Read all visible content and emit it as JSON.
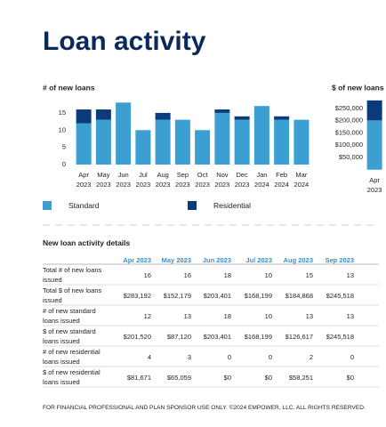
{
  "title": "Loan activity",
  "chart_data": [
    {
      "type": "bar",
      "stacked": true,
      "title": "# of new loans",
      "categories": [
        "Apr 2023",
        "May 2023",
        "Jun 2023",
        "Jul 2023",
        "Aug 2023",
        "Sep 2023",
        "Oct 2023",
        "Nov 2023",
        "Dec 2023",
        "Jan 2024",
        "Feb 2024",
        "Mar 2024"
      ],
      "series": [
        {
          "name": "Standard",
          "color": "#3b9fd1",
          "values": [
            12,
            13,
            18,
            10,
            13,
            13,
            10,
            15,
            13,
            17,
            13,
            13
          ]
        },
        {
          "name": "Residential",
          "color": "#0b3b7a",
          "values": [
            4,
            3,
            0,
            0,
            2,
            0,
            0,
            1,
            1,
            0,
            1,
            0
          ]
        }
      ],
      "ylim": [
        0,
        18
      ],
      "yticks": [
        0,
        5,
        10,
        15
      ]
    },
    {
      "type": "bar",
      "stacked": true,
      "title": "$ of new loans",
      "categories": [
        "Apr 2023"
      ],
      "series": [
        {
          "color": "#3b9fd1",
          "values": [
            201520
          ]
        },
        {
          "color": "#0b3b7a",
          "values": [
            81671
          ]
        }
      ],
      "ylim": [
        0,
        290000
      ],
      "yticks": [
        {
          "value": 50000,
          "label": "$50,000"
        },
        {
          "value": 100000,
          "label": "$100,000"
        },
        {
          "value": 150000,
          "label": "$150,000"
        },
        {
          "value": 200000,
          "label": "$200,000"
        },
        {
          "value": 250000,
          "label": "$250,000"
        }
      ]
    }
  ],
  "table": {
    "title": "New loan activity details",
    "columns": [
      "Apr 2023",
      "May 2023",
      "Jun 2023",
      "Jul 2023",
      "Aug 2023",
      "Sep 2023"
    ],
    "rows": [
      {
        "label": "Total # of new loans issued",
        "cells": [
          16,
          16,
          18,
          10,
          15,
          13
        ]
      },
      {
        "label": "Total $ of new loans issued",
        "cells": [
          "$283,192",
          "$152,179",
          "$203,401",
          "$168,199",
          "$184,868",
          "$245,518"
        ]
      },
      {
        "label": "# of new standard loans issued",
        "cells": [
          12,
          13,
          18,
          10,
          13,
          13
        ]
      },
      {
        "label": "$ of new standard loans issued",
        "cells": [
          "$201,520",
          "$87,120",
          "$203,401",
          "$168,199",
          "$126,617",
          "$245,518"
        ]
      },
      {
        "label": "# of new residential loans issued",
        "cells": [
          4,
          3,
          0,
          0,
          2,
          0
        ]
      },
      {
        "label": "$ of new residential loans issued",
        "cells": [
          "$81,671",
          "$65,059",
          "$0",
          "$0",
          "$58,251",
          "$0"
        ]
      }
    ]
  },
  "footer": "FOR FINANCIAL PROFESSIONAL AND PLAN SPONSOR USE ONLY. ©2024 EMPOWER, LLC. ALL RIGHTS RESERVED."
}
